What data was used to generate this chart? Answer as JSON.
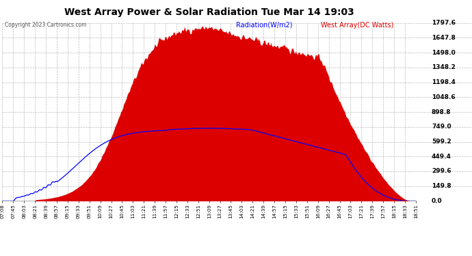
{
  "title": "West Array Power & Solar Radiation Tue Mar 14 19:03",
  "copyright": "Copyright 2023 Cartronics.com",
  "legend_radiation": "Radiation(W/m2)",
  "legend_west": "West Array(DC Watts)",
  "ylim": [
    0.0,
    1797.6
  ],
  "yticks": [
    0.0,
    149.8,
    299.6,
    449.4,
    599.2,
    749.0,
    898.8,
    1048.6,
    1198.4,
    1348.2,
    1498.0,
    1647.8,
    1797.6
  ],
  "bg_color": "#ffffff",
  "fill_color": "#dd0000",
  "line_color_radiation": "#0000ff",
  "title_color": "#000000",
  "xtick_labels": [
    "07:08",
    "07:45",
    "08:03",
    "08:21",
    "08:39",
    "08:57",
    "09:15",
    "09:33",
    "09:51",
    "10:09",
    "10:27",
    "10:45",
    "11:03",
    "11:21",
    "11:39",
    "11:57",
    "12:15",
    "12:33",
    "12:51",
    "13:09",
    "13:27",
    "13:45",
    "14:03",
    "14:21",
    "14:39",
    "14:57",
    "15:15",
    "15:33",
    "15:51",
    "16:09",
    "16:27",
    "16:45",
    "17:03",
    "17:21",
    "17:39",
    "17:57",
    "18:15",
    "18:33",
    "18:51"
  ],
  "n_points": 700
}
